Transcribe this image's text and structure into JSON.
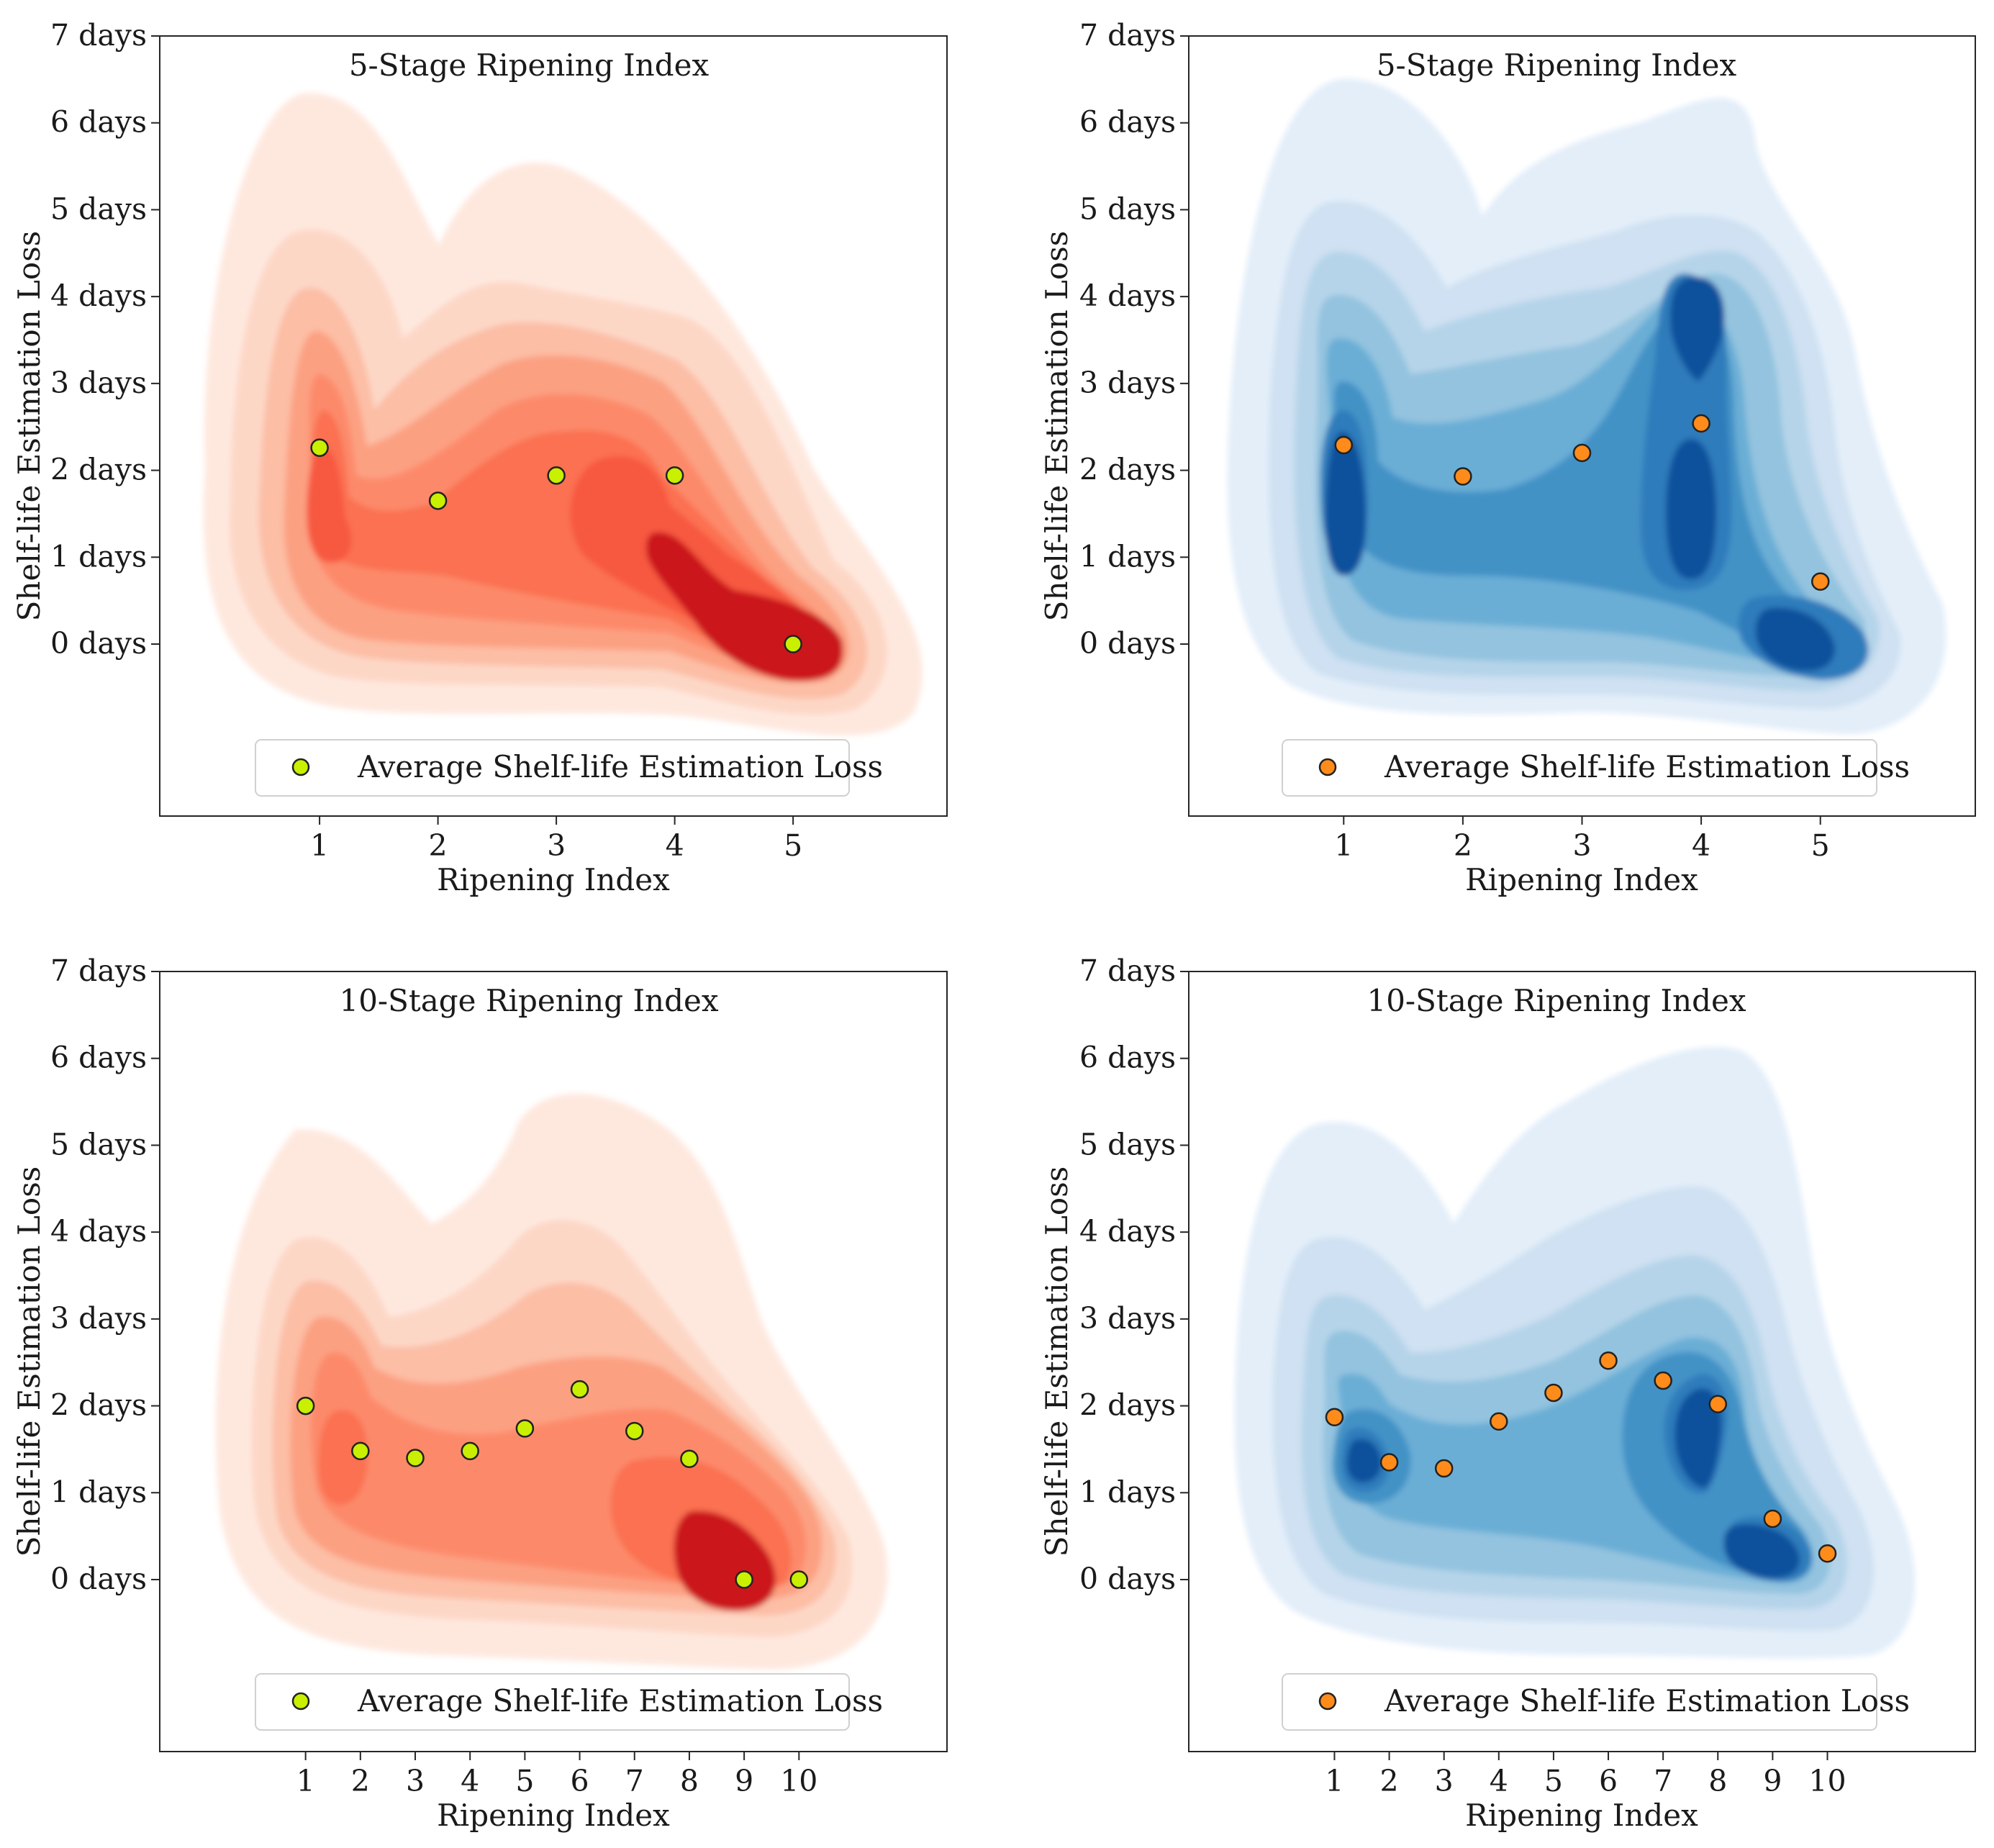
{
  "chart_data": [
    {
      "type": "scatter",
      "panel": "top-left",
      "title": "5-Stage Ripening Index",
      "xlabel": "Ripening Index",
      "ylabel": "Shelf-life Estimation Loss",
      "x_ticks": [
        "1",
        "2",
        "3",
        "4",
        "5"
      ],
      "y_ticks": [
        "0 days",
        "1 days",
        "2 days",
        "3 days",
        "4 days",
        "5 days",
        "6 days",
        "7 days"
      ],
      "xlim": [
        -0.35,
        6.3
      ],
      "ylim": [
        -1.98,
        7
      ],
      "density_colormap": "Reds",
      "legend": "Average Shelf-life Estimation Loss",
      "legend_position": "lower-center",
      "marker_color": "#c8f000",
      "series": [
        {
          "name": "Average Shelf-life Estimation Loss",
          "x": [
            1,
            2,
            3,
            4,
            5
          ],
          "y": [
            2.26,
            1.65,
            1.94,
            1.94,
            0.0
          ]
        }
      ],
      "density_hotspots": [
        {
          "x": 1.0,
          "y": 1.2
        },
        {
          "x": 3.5,
          "y": 1.2
        },
        {
          "x": 5.0,
          "y": -0.1
        }
      ]
    },
    {
      "type": "scatter",
      "panel": "top-right",
      "title": "5-Stage Ripening Index",
      "xlabel": "Ripening Index",
      "ylabel": "Shelf-life Estimation Loss",
      "x_ticks": [
        "1",
        "2",
        "3",
        "4",
        "5"
      ],
      "y_ticks": [
        "0 days",
        "1 days",
        "2 days",
        "3 days",
        "4 days",
        "5 days",
        "6 days",
        "7 days"
      ],
      "xlim": [
        -0.3,
        6.3
      ],
      "ylim": [
        -1.98,
        7
      ],
      "density_colormap": "Blues",
      "legend": "Average Shelf-life Estimation Loss",
      "legend_position": "lower-center",
      "marker_color": "#ff8c1a",
      "series": [
        {
          "name": "Average Shelf-life Estimation Loss",
          "x": [
            1,
            2,
            3,
            4,
            5
          ],
          "y": [
            2.29,
            1.93,
            2.2,
            2.54,
            0.72
          ]
        }
      ],
      "density_hotspots": [
        {
          "x": 1.0,
          "y": 1.3
        },
        {
          "x": 4.0,
          "y": 3.8
        },
        {
          "x": 4.0,
          "y": 1.3
        },
        {
          "x": 5.0,
          "y": 0.0
        }
      ]
    },
    {
      "type": "scatter",
      "panel": "bottom-left",
      "title": "10-Stage Ripening Index",
      "xlabel": "Ripening Index",
      "ylabel": "Shelf-life Estimation Loss",
      "x_ticks": [
        "1",
        "2",
        "3",
        "4",
        "5",
        "6",
        "7",
        "8",
        "9",
        "10"
      ],
      "y_ticks": [
        "0 days",
        "1 days",
        "2 days",
        "3 days",
        "4 days",
        "5 days",
        "6 days",
        "7 days"
      ],
      "xlim": [
        -1.66,
        12.7
      ],
      "ylim": [
        -1.98,
        7
      ],
      "density_colormap": "Reds",
      "legend": "Average Shelf-life Estimation Loss",
      "legend_position": "lower-center",
      "marker_color": "#c8f000",
      "series": [
        {
          "name": "Average Shelf-life Estimation Loss",
          "x": [
            1,
            2,
            3,
            4,
            5,
            6,
            7,
            8,
            9,
            10
          ],
          "y": [
            2.0,
            1.48,
            1.4,
            1.48,
            1.74,
            2.19,
            1.71,
            1.39,
            0.0,
            0.0
          ]
        }
      ],
      "density_hotspots": [
        {
          "x": 1.8,
          "y": 1.0
        },
        {
          "x": 8.5,
          "y": 0.3
        },
        {
          "x": 9.0,
          "y": 0.0
        }
      ]
    },
    {
      "type": "scatter",
      "panel": "bottom-right",
      "title": "10-Stage Ripening Index",
      "xlabel": "Ripening Index",
      "ylabel": "Shelf-life Estimation Loss",
      "x_ticks": [
        "1",
        "2",
        "3",
        "4",
        "5",
        "6",
        "7",
        "8",
        "9",
        "10"
      ],
      "y_ticks": [
        "0 days",
        "1 days",
        "2 days",
        "3 days",
        "4 days",
        "5 days",
        "6 days",
        "7 days"
      ],
      "xlim": [
        -1.66,
        12.7
      ],
      "ylim": [
        -1.98,
        7
      ],
      "density_colormap": "Blues",
      "legend": "Average Shelf-life Estimation Loss",
      "legend_position": "lower-center",
      "marker_color": "#ff8c1a",
      "series": [
        {
          "name": "Average Shelf-life Estimation Loss",
          "x": [
            1,
            2,
            3,
            4,
            5,
            6,
            7,
            8,
            9,
            10
          ],
          "y": [
            1.87,
            1.35,
            1.28,
            1.82,
            2.15,
            2.52,
            2.29,
            2.02,
            0.7,
            0.3
          ]
        }
      ],
      "density_hotspots": [
        {
          "x": 1.5,
          "y": 1.05
        },
        {
          "x": 7.8,
          "y": 1.8
        },
        {
          "x": 9.0,
          "y": 0.2
        }
      ]
    }
  ]
}
